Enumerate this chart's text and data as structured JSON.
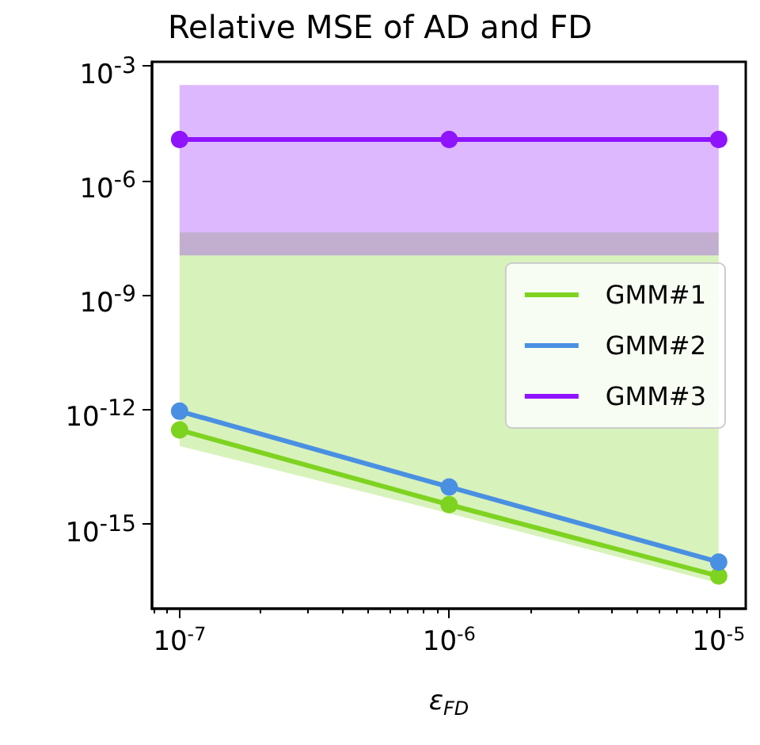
{
  "chart_data": {
    "type": "line",
    "title": "Relative MSE of AD and FD",
    "xlabel": "ε$_{FD}$",
    "x": [
      1e-07,
      1e-06,
      1e-05
    ],
    "series": [
      {
        "name": "GMM#1",
        "color": "#7ed321",
        "values": [
          2.9e-13,
          3.2e-15,
          4.3e-17
        ],
        "lower": [
          1.1e-13,
          1.9e-15,
          2.8e-17
        ],
        "upper": [
          4.4e-08,
          4.4e-08,
          4.4e-08
        ]
      },
      {
        "name": "GMM#2",
        "color": "#4a90e2",
        "values": [
          9e-13,
          9.3e-15,
          1e-16
        ]
      },
      {
        "name": "GMM#3",
        "color": "#8f13fd",
        "values": [
          1.2e-05,
          1.2e-05,
          1.2e-05
        ],
        "lower": [
          1.1e-08,
          1.1e-08,
          1.1e-08
        ],
        "upper": [
          0.00032,
          0.00032,
          0.00032
        ]
      }
    ],
    "log": "xy",
    "xlim": [
      7.9e-08,
      1.26e-05
    ],
    "ylim": [
      6e-18,
      0.0013
    ],
    "xticks": [
      {
        "value": 1e-07,
        "label": "10$^{-7}$"
      },
      {
        "value": 1e-06,
        "label": "10$^{-6}$"
      },
      {
        "value": 1e-05,
        "label": "10$^{-5}$"
      }
    ],
    "yticks": [
      {
        "value": 1e-15,
        "label": "10$^{-15}$"
      },
      {
        "value": 1e-12,
        "label": "10$^{-12}$"
      },
      {
        "value": 1e-09,
        "label": "10$^{-9}$"
      },
      {
        "value": 1e-06,
        "label": "10$^{-6}$"
      },
      {
        "value": 0.001,
        "label": "10$^{-3}$"
      }
    ],
    "marker": "circle",
    "line_style": "solid",
    "legend": "right",
    "grid": false
  }
}
